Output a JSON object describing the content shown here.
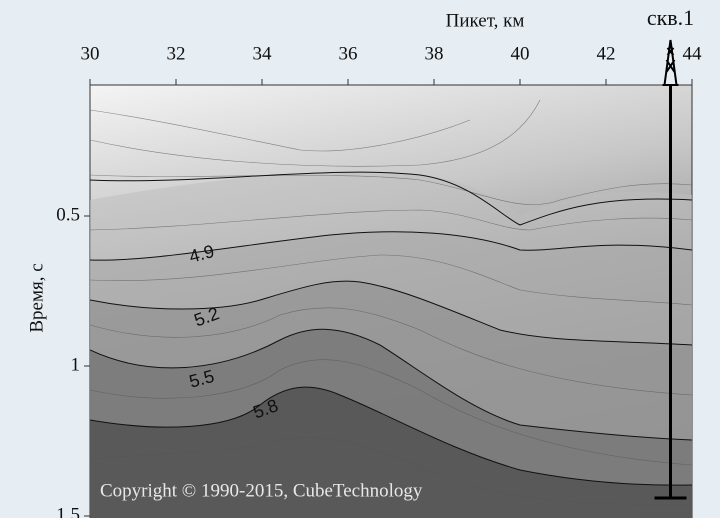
{
  "chart_data": {
    "type": "contour",
    "xlabel": "Пикет, км",
    "ylabel": "Время, с",
    "xlim": [
      30,
      44
    ],
    "xticks": [
      30,
      32,
      34,
      36,
      38,
      40,
      42,
      44
    ],
    "ylim": [
      0.06,
      1.5
    ],
    "yticks": [
      0.5,
      1,
      1.5
    ],
    "contour_labels": [
      4.9,
      5.2,
      5.5,
      5.8
    ],
    "well": {
      "label": "скв.1",
      "x": 43.5,
      "depth": 1.44
    },
    "copyright": "Copyright © 1990-2015, CubeTechnology"
  }
}
